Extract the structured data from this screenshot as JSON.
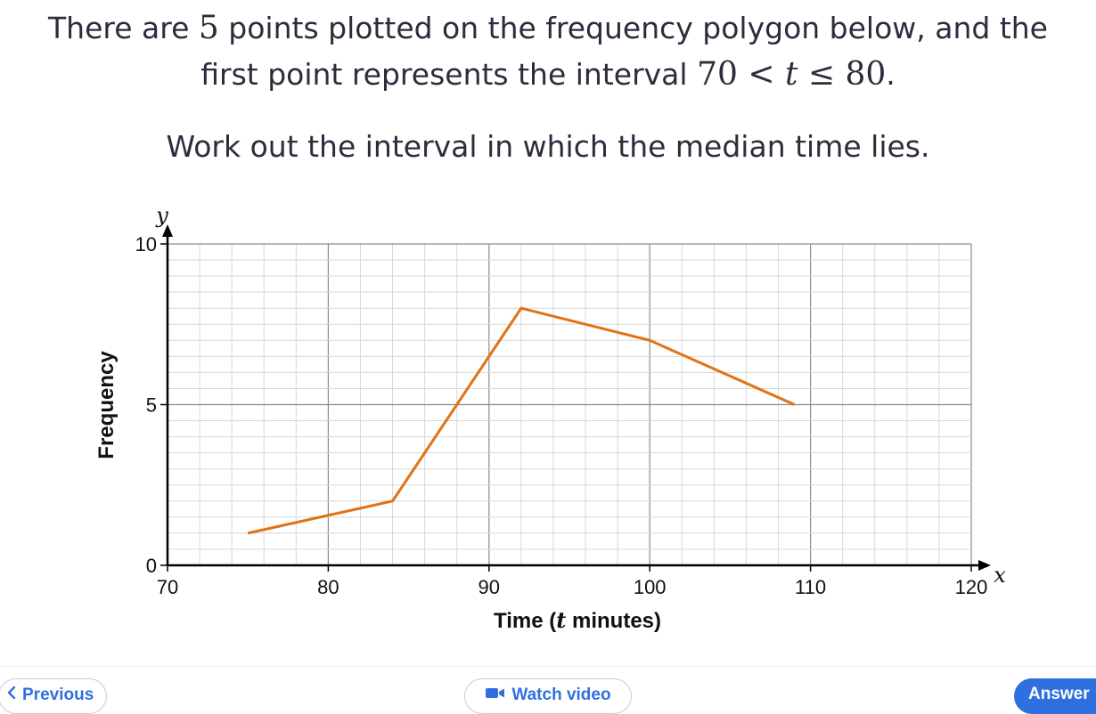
{
  "question": {
    "line1_pre": "There are ",
    "line1_num": "5",
    "line1_post": " points plotted on the frequency polygon below, and the",
    "line2_pre": "first point represents the interval ",
    "interval_low": "70",
    "interval_lt": " < ",
    "interval_var": "t",
    "interval_le": " ≤ ",
    "interval_high": "80",
    "line2_post": ".",
    "task": "Work out the interval in which the median time lies."
  },
  "chart_data": {
    "type": "line",
    "xlabel_pre": "Time (",
    "xlabel_var": "t",
    "xlabel_post": " minutes)",
    "ylabel": "Frequency",
    "x_axis_var": "x",
    "y_axis_var": "y",
    "xlim": [
      70,
      120
    ],
    "ylim": [
      0,
      10
    ],
    "x_ticks": [
      70,
      80,
      90,
      100,
      110,
      120
    ],
    "y_ticks": [
      0,
      5,
      10
    ],
    "grid": true,
    "line_color": "#e07215",
    "series": [
      {
        "x": [
          75,
          84,
          92,
          100,
          109
        ],
        "y": [
          1,
          2,
          8,
          7,
          5
        ]
      }
    ]
  },
  "footer": {
    "previous_label": "Previous",
    "video_label": "Watch video",
    "answer_label": "Answer",
    "accent": "#2f6fe0",
    "previous_icon": "chevron-left-icon",
    "video_icon": "video-camera-icon"
  }
}
